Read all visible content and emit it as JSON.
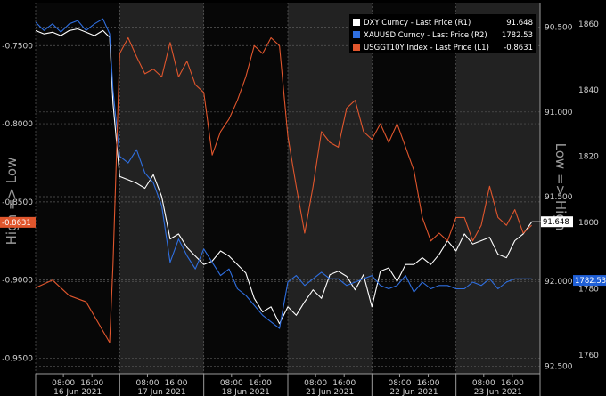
{
  "chart_data": {
    "type": "line",
    "axes": {
      "left": {
        "label": "High => Low",
        "ticks": [
          -0.95,
          -0.9,
          -0.85,
          -0.8,
          -0.75
        ],
        "tick_labels": [
          "-0.9500",
          "-0.9000",
          "-0.8500",
          "-0.8000",
          "-0.7500"
        ],
        "range": [
          -0.96,
          -0.7225
        ]
      },
      "right_inner": {
        "label": "Low => High",
        "ticks": [
          90.5,
          91.0,
          91.5,
          92.0,
          92.5
        ],
        "tick_labels": [
          "90.500",
          "91.000",
          "91.500",
          "92.000",
          "92.500"
        ],
        "range": [
          90.355,
          92.545
        ],
        "inverted": true
      },
      "right_outer": {
        "ticks": [
          1860,
          1840,
          1820,
          1800,
          1780,
          1760
        ],
        "tick_labels": [
          "1860",
          "1840",
          "1820",
          "1800",
          "1780",
          "1760"
        ],
        "range": [
          1754.33,
          1866.4
        ]
      },
      "x": {
        "time_labels": [
          "08:00",
          "16:00",
          "08:00",
          "16:00",
          "08:00",
          "16:00",
          "08:00",
          "16:00",
          "08:00",
          "16:00",
          "08:00",
          "16:00"
        ],
        "day_labels": [
          "16 Jun 2021",
          "17 Jun 2021",
          "18 Jun 2021",
          "21 Jun 2021",
          "22 Jun 2021",
          "23 Jun 2021"
        ]
      }
    },
    "shaded_sessions": [
      [
        1,
        2
      ],
      [
        3,
        4
      ],
      [
        5,
        6
      ]
    ],
    "legend": {
      "position": "top-right",
      "items": [
        {
          "label": "DXY Curncy - Last Price (R1)",
          "value": "91.648",
          "color": "#ffffff"
        },
        {
          "label": "XAUUSD Curncy - Last Price (R2)",
          "value": "1782.53",
          "color": "#2f6fe0"
        },
        {
          "label": "USGGT10Y Index - Last Price (L1)",
          "value": "-0.8631",
          "color": "#e0562d"
        }
      ]
    },
    "badges": {
      "left": {
        "text": "-0.8631",
        "color": "#e0562d"
      },
      "dxy": {
        "text": "91.648",
        "color": "#ffffff"
      },
      "xau": {
        "text": "1782.53",
        "color": "#1f5fd6"
      }
    },
    "series": [
      {
        "name": "DXY Curncy - Last Price (R1)",
        "axis": "right_inner",
        "color": "#ffffff",
        "x": [
          0.0,
          0.1,
          0.2,
          0.3,
          0.4,
          0.5,
          0.6,
          0.7,
          0.8,
          0.88,
          0.92,
          1.0,
          1.1,
          1.2,
          1.3,
          1.4,
          1.5,
          1.6,
          1.7,
          1.8,
          1.9,
          2.0,
          2.1,
          2.2,
          2.3,
          2.4,
          2.5,
          2.6,
          2.7,
          2.8,
          2.9,
          3.0,
          3.1,
          3.2,
          3.3,
          3.4,
          3.5,
          3.6,
          3.7,
          3.8,
          3.9,
          4.0,
          4.1,
          4.2,
          4.3,
          4.4,
          4.5,
          4.6,
          4.7,
          4.8,
          4.9,
          5.0,
          5.1,
          5.2,
          5.3,
          5.4,
          5.5,
          5.6,
          5.7,
          5.8,
          5.9
        ],
        "y": [
          90.52,
          90.54,
          90.53,
          90.55,
          90.52,
          90.51,
          90.53,
          90.55,
          90.52,
          90.56,
          90.95,
          91.38,
          91.4,
          91.42,
          91.45,
          91.37,
          91.5,
          91.75,
          91.72,
          91.8,
          91.85,
          91.9,
          91.88,
          91.82,
          91.85,
          91.9,
          91.95,
          92.1,
          92.18,
          92.15,
          92.25,
          92.15,
          92.2,
          92.12,
          92.05,
          92.1,
          91.96,
          91.94,
          91.97,
          92.05,
          91.96,
          92.15,
          91.94,
          91.92,
          92.0,
          91.9,
          91.9,
          91.86,
          91.9,
          91.84,
          91.76,
          91.82,
          91.72,
          91.78,
          91.76,
          91.74,
          91.84,
          91.86,
          91.76,
          91.72,
          91.65
        ]
      },
      {
        "name": "XAUUSD Curncy - Last Price (R2)",
        "axis": "right_outer",
        "color": "#2f6fe0",
        "x": [
          0.0,
          0.1,
          0.2,
          0.3,
          0.4,
          0.5,
          0.6,
          0.7,
          0.8,
          0.88,
          0.92,
          1.0,
          1.1,
          1.2,
          1.3,
          1.4,
          1.5,
          1.6,
          1.7,
          1.8,
          1.9,
          2.0,
          2.1,
          2.2,
          2.3,
          2.4,
          2.5,
          2.6,
          2.7,
          2.8,
          2.9,
          3.0,
          3.1,
          3.2,
          3.3,
          3.4,
          3.5,
          3.6,
          3.7,
          3.8,
          3.9,
          4.0,
          4.1,
          4.2,
          4.3,
          4.4,
          4.5,
          4.6,
          4.7,
          4.8,
          4.9,
          5.0,
          5.1,
          5.2,
          5.3,
          5.4,
          5.5,
          5.6,
          5.7,
          5.8,
          5.9
        ],
        "y": [
          1860.5,
          1858.0,
          1860.0,
          1857.5,
          1860.0,
          1861.0,
          1858.0,
          1860.0,
          1861.5,
          1857.0,
          1840.0,
          1820.0,
          1818.0,
          1822.0,
          1815.0,
          1812.0,
          1805.0,
          1788.0,
          1795.0,
          1790.0,
          1786.0,
          1792.0,
          1788.0,
          1784.0,
          1786.0,
          1780.0,
          1778.0,
          1775.0,
          1772.0,
          1770.0,
          1768.0,
          1782.0,
          1784.0,
          1781.0,
          1783.0,
          1785.0,
          1783.0,
          1783.0,
          1781.0,
          1782.0,
          1783.0,
          1784.0,
          1781.0,
          1780.0,
          1781.0,
          1784.0,
          1779.0,
          1782.0,
          1780.0,
          1781.0,
          1781.0,
          1780.0,
          1780.0,
          1782.0,
          1781.0,
          1783.0,
          1780.0,
          1782.0,
          1783.0,
          1783.0,
          1783.0
        ]
      },
      {
        "name": "USGGT10Y Index - Last Price (L1)",
        "axis": "left",
        "color": "#e0562d",
        "x": [
          0.0,
          0.2,
          0.4,
          0.6,
          0.88,
          0.92,
          1.0,
          1.1,
          1.2,
          1.3,
          1.4,
          1.5,
          1.6,
          1.7,
          1.8,
          1.9,
          2.0,
          2.1,
          2.2,
          2.3,
          2.4,
          2.5,
          2.6,
          2.7,
          2.8,
          2.9,
          3.0,
          3.1,
          3.2,
          3.3,
          3.4,
          3.5,
          3.6,
          3.7,
          3.8,
          3.9,
          4.0,
          4.1,
          4.2,
          4.3,
          4.4,
          4.5,
          4.6,
          4.7,
          4.8,
          4.9,
          5.0,
          5.1,
          5.2,
          5.3,
          5.4,
          5.5,
          5.6,
          5.7,
          5.8,
          5.9
        ],
        "y": [
          -0.905,
          -0.9,
          -0.91,
          -0.914,
          -0.94,
          -0.89,
          -0.755,
          -0.745,
          -0.757,
          -0.768,
          -0.765,
          -0.77,
          -0.748,
          -0.77,
          -0.76,
          -0.775,
          -0.78,
          -0.82,
          -0.805,
          -0.797,
          -0.785,
          -0.77,
          -0.75,
          -0.755,
          -0.745,
          -0.75,
          -0.808,
          -0.84,
          -0.87,
          -0.84,
          -0.805,
          -0.812,
          -0.815,
          -0.79,
          -0.785,
          -0.805,
          -0.81,
          -0.8,
          -0.812,
          -0.8,
          -0.815,
          -0.83,
          -0.86,
          -0.875,
          -0.87,
          -0.875,
          -0.86,
          -0.86,
          -0.875,
          -0.865,
          -0.84,
          -0.86,
          -0.865,
          -0.855,
          -0.87,
          -0.865
        ]
      }
    ]
  }
}
